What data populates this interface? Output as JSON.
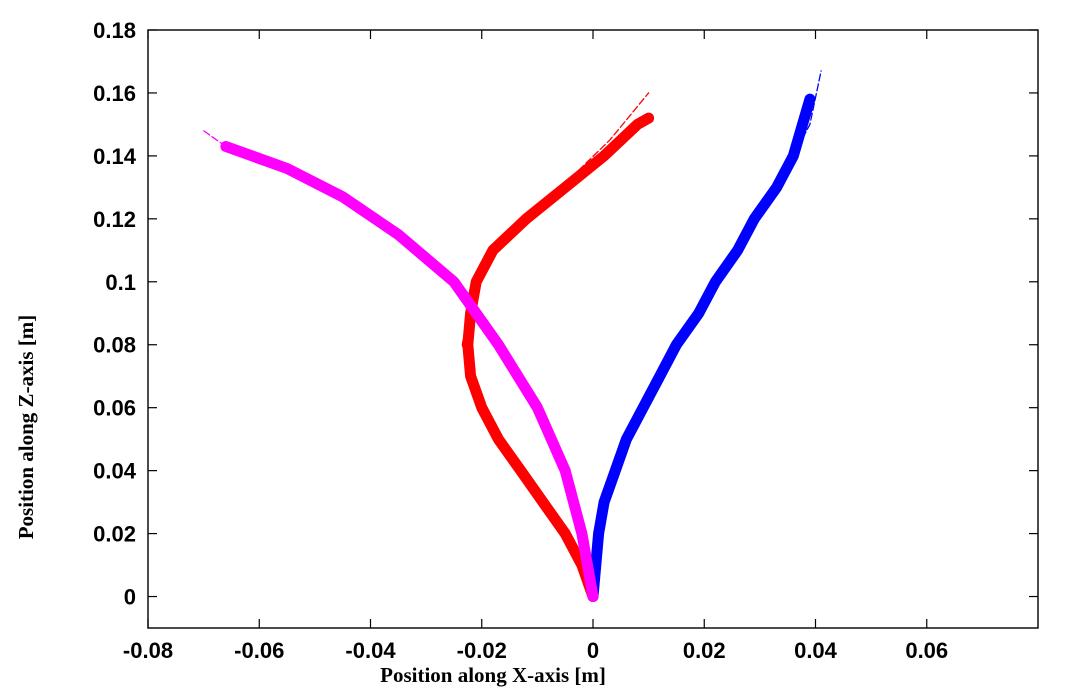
{
  "chart_data": {
    "type": "line",
    "title": "",
    "xlabel": "Position along X-axis [m]",
    "ylabel": "Position along Z-axis [m]",
    "xlim": [
      -0.08,
      0.08
    ],
    "ylim": [
      -0.01,
      0.18
    ],
    "xticks": [
      -0.08,
      -0.06,
      -0.04,
      -0.02,
      0,
      0.02,
      0.04,
      0.06
    ],
    "xtick_labels": [
      "-0.08",
      "-0.06",
      "-0.04",
      "-0.02",
      "0",
      "0.02",
      "0.04",
      "0.06"
    ],
    "yticks": [
      0,
      0.02,
      0.04,
      0.06,
      0.08,
      0.1,
      0.12,
      0.14,
      0.16,
      0.18
    ],
    "ytick_labels": [
      "0",
      "0.02",
      "0.04",
      "0.06",
      "0.08",
      "0.1",
      "0.12",
      "0.14",
      "0.16",
      "0.18"
    ],
    "grid": false,
    "legend": "none",
    "series": [
      {
        "color": "#0000ff",
        "style": "thick",
        "points": [
          [
            0.0,
            0.0
          ],
          [
            0.0005,
            0.01
          ],
          [
            0.001,
            0.02
          ],
          [
            0.002,
            0.03
          ],
          [
            0.004,
            0.04
          ],
          [
            0.006,
            0.05
          ],
          [
            0.009,
            0.06
          ],
          [
            0.012,
            0.07
          ],
          [
            0.015,
            0.08
          ],
          [
            0.019,
            0.09
          ],
          [
            0.022,
            0.1
          ],
          [
            0.026,
            0.11
          ],
          [
            0.029,
            0.12
          ],
          [
            0.033,
            0.13
          ],
          [
            0.036,
            0.14
          ],
          [
            0.039,
            0.158
          ]
        ]
      },
      {
        "color": "#0000ff",
        "style": "dashed",
        "points": [
          [
            0.036,
            0.14
          ],
          [
            0.039,
            0.15
          ],
          [
            0.041,
            0.167
          ]
        ]
      },
      {
        "color": "#ff0000",
        "style": "thick",
        "points": [
          [
            0.0,
            0.0
          ],
          [
            -0.002,
            0.01
          ],
          [
            -0.005,
            0.02
          ],
          [
            -0.009,
            0.03
          ],
          [
            -0.013,
            0.04
          ],
          [
            -0.017,
            0.05
          ],
          [
            -0.02,
            0.06
          ],
          [
            -0.022,
            0.07
          ],
          [
            -0.0225,
            0.08
          ],
          [
            -0.022,
            0.09
          ],
          [
            -0.021,
            0.1
          ],
          [
            -0.018,
            0.11
          ],
          [
            -0.012,
            0.12
          ],
          [
            -0.005,
            0.13
          ],
          [
            0.002,
            0.14
          ],
          [
            0.008,
            0.15
          ],
          [
            0.01,
            0.152
          ]
        ]
      },
      {
        "color": "#ff0000",
        "style": "dashed",
        "points": [
          [
            -0.022,
            0.07
          ],
          [
            -0.0235,
            0.08
          ],
          [
            -0.0225,
            0.09
          ],
          [
            -0.021,
            0.1
          ],
          [
            -0.018,
            0.11
          ],
          [
            -0.011,
            0.122
          ],
          [
            -0.004,
            0.133
          ],
          [
            0.003,
            0.145
          ],
          [
            0.01,
            0.16
          ]
        ]
      },
      {
        "color": "#ff00ff",
        "style": "thick",
        "points": [
          [
            0.0,
            0.0
          ],
          [
            -0.002,
            0.02
          ],
          [
            -0.005,
            0.04
          ],
          [
            -0.01,
            0.06
          ],
          [
            -0.017,
            0.08
          ],
          [
            -0.025,
            0.1
          ],
          [
            -0.035,
            0.115
          ],
          [
            -0.045,
            0.127
          ],
          [
            -0.055,
            0.136
          ],
          [
            -0.066,
            0.143
          ]
        ]
      },
      {
        "color": "#ff00ff",
        "style": "dashed",
        "points": [
          [
            -0.066,
            0.143
          ],
          [
            -0.07,
            0.148
          ]
        ]
      }
    ]
  }
}
